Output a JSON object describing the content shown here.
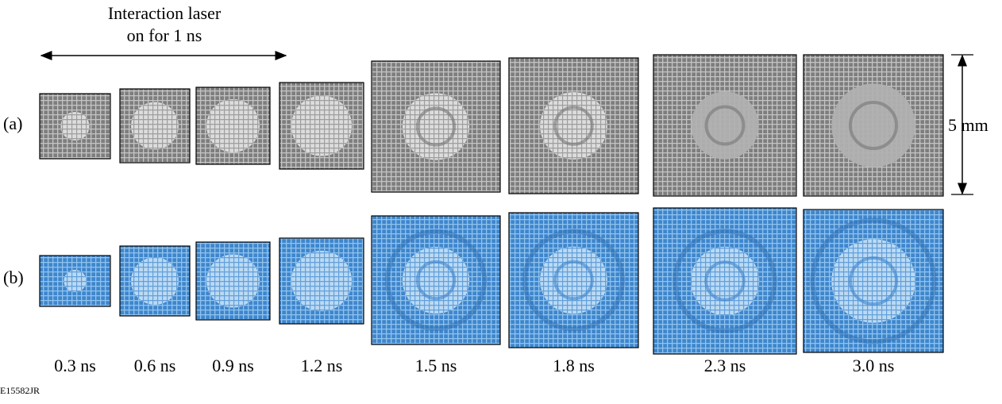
{
  "annotation": {
    "lines": [
      "Interaction laser",
      "on for 1 ns"
    ]
  },
  "rows": [
    {
      "label": "(a)"
    },
    {
      "label": "(b)"
    }
  ],
  "frames": [
    {
      "time": "0.3 ns"
    },
    {
      "time": "0.6 ns"
    },
    {
      "time": "0.9 ns"
    },
    {
      "time": "1.2 ns"
    },
    {
      "time": "1.5 ns"
    },
    {
      "time": "1.8 ns"
    },
    {
      "time": "2.3 ns"
    },
    {
      "time": "3.0 ns"
    }
  ],
  "scale_label": "5 mm",
  "figure_id": "E15582JR"
}
